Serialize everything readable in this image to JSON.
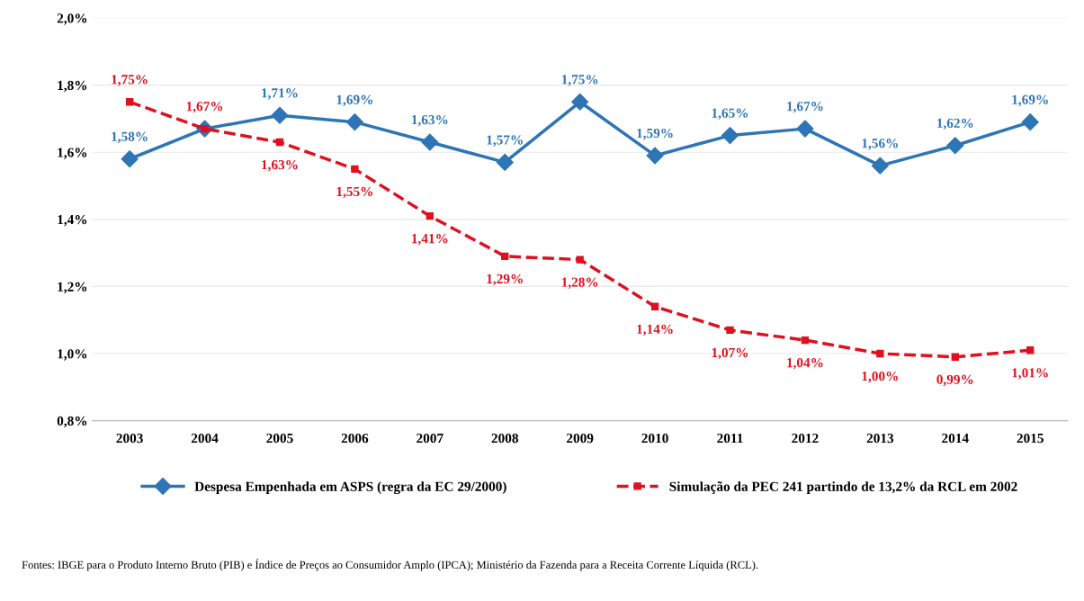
{
  "chart_data": {
    "type": "line",
    "categories": [
      "2003",
      "2004",
      "2005",
      "2006",
      "2007",
      "2008",
      "2009",
      "2010",
      "2011",
      "2012",
      "2013",
      "2014",
      "2015"
    ],
    "series": [
      {
        "name": "Despesa Empenhada em ASPS (regra da EC 29/2000)",
        "color": "#2e75b6",
        "marker": "diamond",
        "line_style": "solid",
        "values": [
          1.58,
          1.67,
          1.71,
          1.69,
          1.63,
          1.57,
          1.75,
          1.59,
          1.65,
          1.67,
          1.56,
          1.62,
          1.69
        ],
        "value_labels": [
          "1,58%",
          null,
          "1,71%",
          "1,69%",
          "1,63%",
          "1,57%",
          "1,75%",
          "1,59%",
          "1,65%",
          "1,67%",
          "1,56%",
          "1,62%",
          "1,69%"
        ]
      },
      {
        "name": "Simulação da PEC 241 partindo de 13,2% da RCL em 2002",
        "color": "#e0101e",
        "marker": "square",
        "line_style": "dashed",
        "values": [
          1.75,
          1.67,
          1.63,
          1.55,
          1.41,
          1.29,
          1.28,
          1.14,
          1.07,
          1.04,
          1.0,
          0.99,
          1.01
        ],
        "value_labels": [
          "1,75%",
          "1,67%",
          "1,63%",
          "1,55%",
          "1,41%",
          "1,29%",
          "1,28%",
          "1,14%",
          "1,07%",
          "1,04%",
          "1,00%",
          "0,99%",
          "1,01%"
        ]
      }
    ],
    "ylim": [
      0.8,
      2.0
    ],
    "yticks": [
      {
        "value": 0.8,
        "label": "0,8%"
      },
      {
        "value": 1.0,
        "label": "1,0%"
      },
      {
        "value": 1.2,
        "label": "1,2%"
      },
      {
        "value": 1.4,
        "label": "1,4%"
      },
      {
        "value": 1.6,
        "label": "1,6%"
      },
      {
        "value": 1.8,
        "label": "1,8%"
      },
      {
        "value": 2.0,
        "label": "2,0%"
      }
    ],
    "grid": "y",
    "legend": "bottom",
    "annotations": [
      "Fontes: IBGE para o Produto Interno Bruto (PIB) e Índice de Preços ao Consumidor Amplo (IPCA); Ministério da Fazenda para a Receita Corrente Líquida (RCL)."
    ]
  }
}
